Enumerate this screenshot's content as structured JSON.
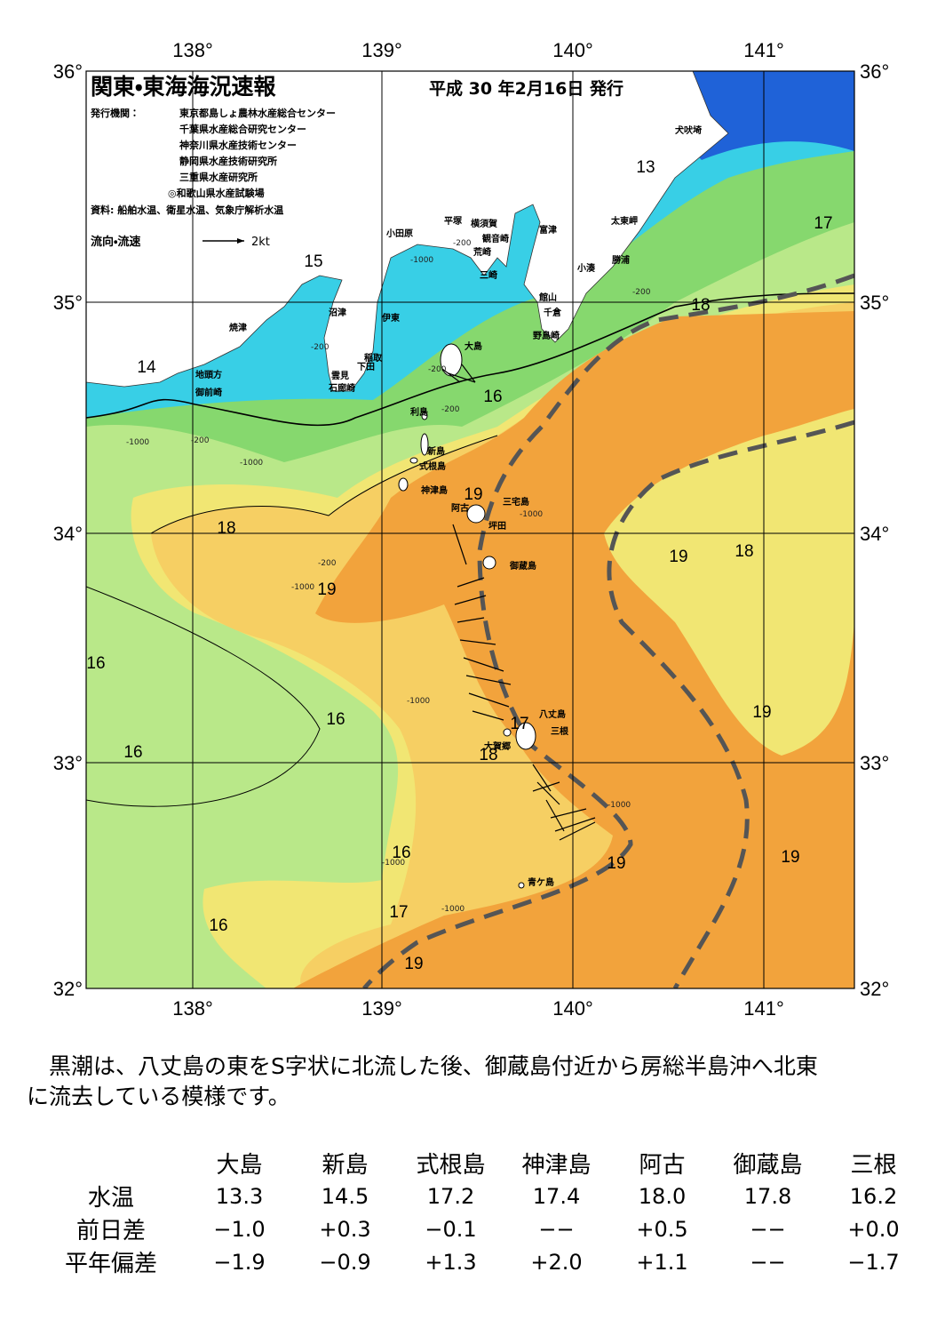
{
  "map": {
    "title": "関東・東海海況速報",
    "date": "平成 30 年2月16日 発行",
    "issuer_label": "発行機関：",
    "issuers": [
      "東京都島しょ農林水産総合センター",
      "千葉県水産総合研究センター",
      "神奈川県水産技術センター",
      "静岡県水産技術研究所",
      "三重県水産研究所",
      "◎和歌山県水産試験場"
    ],
    "source": "資料: 船舶水温、衛星水温、気象庁解析水温",
    "legend_label": "流向・流速",
    "legend_scale": "2kt",
    "lon_labels": [
      "138°",
      "139°",
      "140°",
      "141°"
    ],
    "lat_labels": [
      "36°",
      "35°",
      "34°",
      "33°",
      "32°"
    ],
    "place_names": [
      "犬吠埼",
      "富津",
      "太東岬",
      "横須賀",
      "平塚",
      "観音崎",
      "小田原",
      "荒崎",
      "勝浦",
      "小湊",
      "三崎",
      "館山",
      "千倉",
      "野島崎",
      "沼津",
      "伊東",
      "焼津",
      "稲取",
      "下田",
      "雲見",
      "石廊崎",
      "地頭方",
      "御前崎",
      "大島",
      "利島",
      "新島",
      "式根島",
      "神津島",
      "三宅島",
      "阿古",
      "坪田",
      "御蔵島",
      "八丈島",
      "三根",
      "大賀郷",
      "青ケ島"
    ],
    "isotherm_labels": [
      "13",
      "17",
      "15",
      "18",
      "14",
      "16",
      "19",
      "18",
      "19",
      "18",
      "19",
      "16",
      "16",
      "19",
      "17",
      "16",
      "18",
      "16",
      "19",
      "19",
      "17",
      "16",
      "19"
    ],
    "depth_labels": [
      "-200",
      "-1000",
      "-200",
      "-200",
      "-200",
      "-200",
      "-1000",
      "-200",
      "-1000",
      "-200",
      "-1000",
      "-1000",
      "-1000",
      "-1000",
      "-1000",
      "-1000"
    ]
  },
  "comment": {
    "lines": [
      "黒潮は、八丈島の東をS字状に北流した後、御蔵島付近から房総半島沖へ北東",
      "に流去している模様です。"
    ]
  },
  "table": {
    "columns": [
      "大島",
      "新島",
      "式根島",
      "神津島",
      "阿古",
      "御蔵島",
      "三根"
    ],
    "rows": [
      {
        "label": "水温",
        "cells": [
          "13.3",
          "14.5",
          "17.2",
          "17.4",
          "18.0",
          "17.8",
          "16.2"
        ]
      },
      {
        "label": "前日差",
        "cells": [
          "−1.0",
          "+0.3",
          "−0.1",
          "−−",
          "+0.5",
          "−−",
          "+0.0"
        ]
      },
      {
        "label": "平年偏差",
        "cells": [
          "−1.9",
          "−0.9",
          "+1.3",
          "+2.0",
          "+1.1",
          "−−",
          "−1.7"
        ]
      }
    ]
  }
}
